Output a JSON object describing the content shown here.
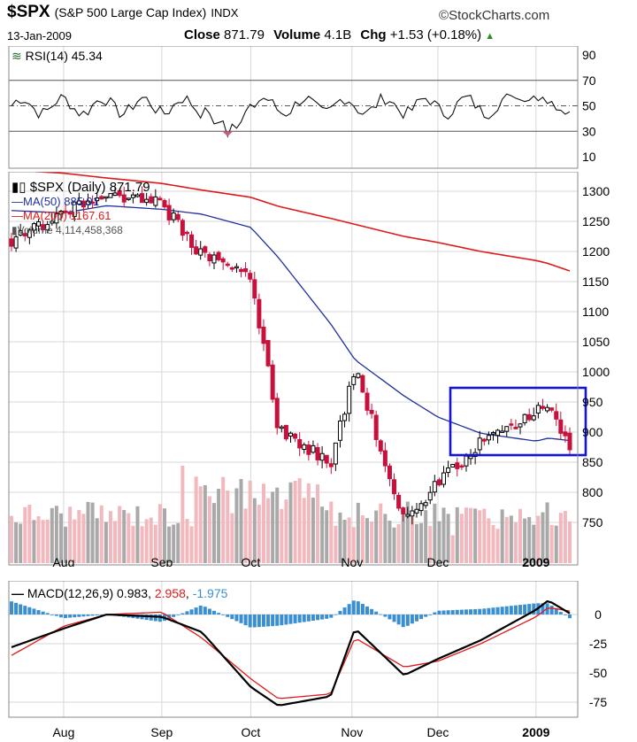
{
  "header": {
    "symbol": "$SPX",
    "name": "(S&P 500 Large Cap Index)",
    "exchange": "INDX",
    "brand": "StockCharts.com",
    "date": "13-Jan-2009",
    "close_label": "Close",
    "close_value": "871.79",
    "volume_label": "Volume",
    "volume_value": "4.1B",
    "chg_label": "Chg",
    "chg_value": "+1.53 (+0.18%)"
  },
  "rsi_panel": {
    "legend": "RSI(14) 45.34",
    "levels": [
      30,
      50,
      70
    ],
    "ticks": [
      90,
      70,
      50,
      30,
      10
    ]
  },
  "price_panel": {
    "legend_price": "$SPX (Daily) 871.79",
    "legend_ma50": "MA(50) 885.91",
    "legend_ma200": "MA(200) 1167.61",
    "legend_volume": "Volume 4,114,458,368",
    "ticks": [
      1300,
      1250,
      1200,
      1150,
      1100,
      1050,
      1000,
      950,
      900,
      850,
      800,
      750
    ],
    "month_labels": [
      "Aug",
      "Sep",
      "Oct",
      "Nov",
      "Dec",
      "2009"
    ]
  },
  "macd_panel": {
    "legend_name": "MACD(12,26,9)",
    "legend_macd": "0.983",
    "legend_signal": "2.958",
    "legend_hist": "-1.975",
    "ticks": [
      0,
      -25,
      -50,
      -75
    ],
    "month_labels": [
      "Aug",
      "Sep",
      "Oct",
      "Nov",
      "Dec",
      "2009"
    ]
  },
  "colors": {
    "up": "#000000",
    "down": "#c8103c",
    "ma50": "#1f2fa0",
    "ma200": "#e0191a",
    "volume_up": "#f2b8bd",
    "volume_down": "#a9a9a9",
    "histogram": "#3a8fd0",
    "highlight_box": "#1414d8",
    "grid": "#d7d7d7"
  },
  "chart_data": {
    "type": "line",
    "title": "$SPX (S&P 500 Large Cap Index)",
    "x": [
      "2008-07-15",
      "2008-08-01",
      "2008-08-15",
      "2008-09-02",
      "2008-09-15",
      "2008-10-01",
      "2008-10-10",
      "2008-10-27",
      "2008-11-04",
      "2008-11-20",
      "2008-12-01",
      "2008-12-15",
      "2009-01-02",
      "2009-01-06",
      "2009-01-13"
    ],
    "series": [
      {
        "name": "$SPX (Daily)",
        "values": [
          1218,
          1265,
          1298,
          1278,
          1195,
          1160,
          905,
          848,
          1006,
          752,
          816,
          882,
          932,
          942,
          871.79
        ]
      },
      {
        "name": "MA(50)",
        "values": [
          1268,
          1264,
          1276,
          1270,
          1262,
          1240,
          1190,
          1080,
          1020,
          960,
          925,
          898,
          885,
          890,
          885.91
        ]
      },
      {
        "name": "MA(200)",
        "values": [
          1335,
          1330,
          1322,
          1313,
          1302,
          1290,
          1275,
          1255,
          1245,
          1225,
          1215,
          1200,
          1185,
          1180,
          1167.61
        ]
      }
    ],
    "ylim": [
      720,
      1340
    ],
    "rsi": {
      "ylim": [
        0,
        100
      ],
      "levels": [
        30,
        50,
        70
      ],
      "last": 45.34
    },
    "macd": {
      "ylim": [
        -85,
        15
      ],
      "series": [
        {
          "name": "MACD(12,26,9)",
          "values": [
            -28,
            -12,
            0,
            -2,
            -15,
            -62,
            -78,
            -70,
            -12,
            -52,
            -38,
            -22,
            4,
            12,
            0.983
          ]
        },
        {
          "name": "Signal",
          "values": [
            -35,
            -10,
            0,
            2,
            -20,
            -55,
            -72,
            -68,
            -20,
            -45,
            -40,
            -25,
            -2,
            6,
            2.958
          ]
        }
      ],
      "histogram_last": -1.975
    },
    "volume_last": 4114458368,
    "grid": true,
    "legend": "top-left"
  }
}
